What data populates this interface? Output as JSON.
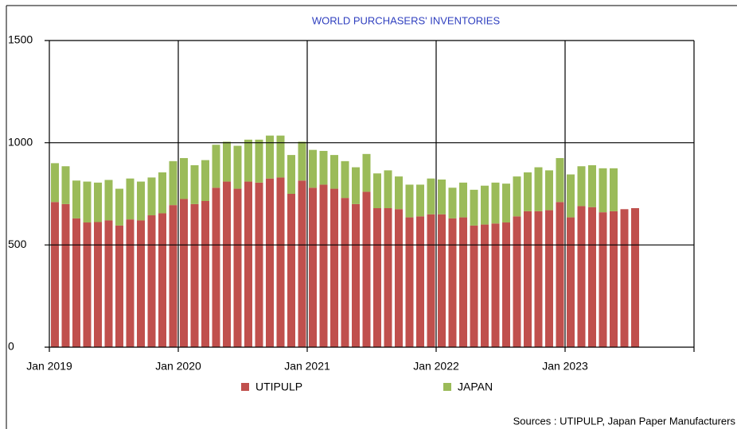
{
  "chart_data": {
    "type": "stacked-bar",
    "title": "WORLD PURCHASERS' INVENTORIES",
    "categories": [
      "Jan 2019",
      null,
      null,
      null,
      null,
      null,
      null,
      null,
      null,
      null,
      null,
      null,
      "Jan 2020",
      null,
      null,
      null,
      null,
      null,
      null,
      null,
      null,
      null,
      null,
      null,
      "Jan 2021",
      null,
      null,
      null,
      null,
      null,
      null,
      null,
      null,
      null,
      null,
      null,
      "Jan 2022",
      null,
      null,
      null,
      null,
      null,
      null,
      null,
      null,
      null,
      null,
      null,
      "Jan 2023",
      null,
      null,
      null,
      null,
      null,
      null
    ],
    "series": [
      {
        "name": "UTIPULP",
        "color": "#c0504d",
        "values": [
          710,
          700,
          630,
          610,
          612,
          620,
          595,
          625,
          620,
          645,
          655,
          695,
          725,
          700,
          715,
          780,
          810,
          775,
          810,
          805,
          825,
          830,
          750,
          815,
          780,
          795,
          775,
          730,
          700,
          760,
          680,
          680,
          675,
          635,
          640,
          650,
          650,
          630,
          635,
          595,
          600,
          605,
          610,
          640,
          665,
          665,
          670,
          710,
          635,
          690,
          685,
          660,
          665,
          675,
          680
        ]
      },
      {
        "name": "JAPAN",
        "color": "#9bbb59",
        "values": [
          190,
          185,
          185,
          200,
          193,
          198,
          180,
          200,
          190,
          185,
          200,
          215,
          200,
          190,
          200,
          210,
          195,
          210,
          205,
          210,
          210,
          205,
          190,
          190,
          185,
          165,
          165,
          180,
          180,
          185,
          170,
          185,
          160,
          160,
          155,
          175,
          170,
          150,
          170,
          175,
          190,
          200,
          190,
          195,
          190,
          215,
          195,
          215,
          210,
          195,
          205,
          215,
          210,
          null,
          null
        ]
      }
    ],
    "ylim": [
      0,
      1500
    ],
    "yticks": [
      0,
      500,
      1000,
      1500
    ],
    "grid": true,
    "source": "Sources : UTIPULP, Japan Paper Manufacturers"
  }
}
